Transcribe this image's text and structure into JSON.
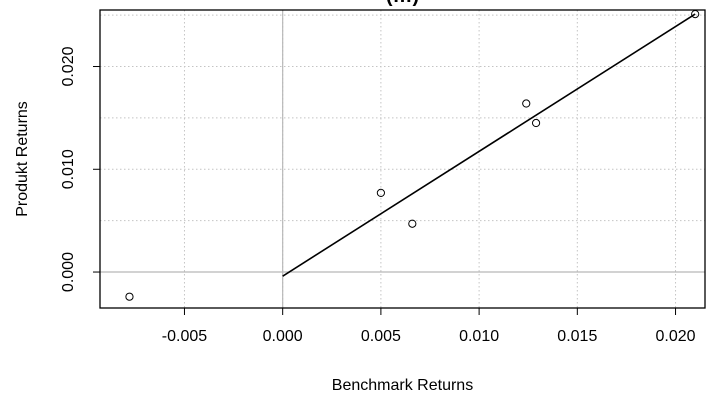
{
  "chart_data": {
    "type": "scatter",
    "title": "(…)",
    "xlabel": "Benchmark Returns",
    "ylabel": "Produkt Returns",
    "xlim": [
      -0.0093,
      0.0215
    ],
    "ylim": [
      -0.0035,
      0.0255
    ],
    "x_ticks": [
      -0.005,
      0.0,
      0.005,
      0.01,
      0.015,
      0.02
    ],
    "x_tick_labels": [
      "-0.005",
      "0.000",
      "0.005",
      "0.010",
      "0.015",
      "0.020"
    ],
    "y_ticks": [
      0.0,
      0.01,
      0.02
    ],
    "y_tick_labels": [
      "0.000",
      "0.010",
      "0.020"
    ],
    "x_grid": [
      -0.005,
      0.0,
      0.005,
      0.01,
      0.015,
      0.02
    ],
    "y_grid": [
      0.0,
      0.005,
      0.01,
      0.015,
      0.02,
      0.025
    ],
    "zero_lines": true,
    "grid": true,
    "points": [
      {
        "x": -0.0078,
        "y": -0.0024
      },
      {
        "x": 0.005,
        "y": 0.0077
      },
      {
        "x": 0.0066,
        "y": 0.0047
      },
      {
        "x": 0.0124,
        "y": 0.0164
      },
      {
        "x": 0.0129,
        "y": 0.0145
      },
      {
        "x": 0.021,
        "y": 0.0251
      }
    ],
    "regression_line": {
      "x": [
        0.0,
        0.021
      ],
      "y": [
        -0.0004,
        0.0251
      ]
    }
  }
}
